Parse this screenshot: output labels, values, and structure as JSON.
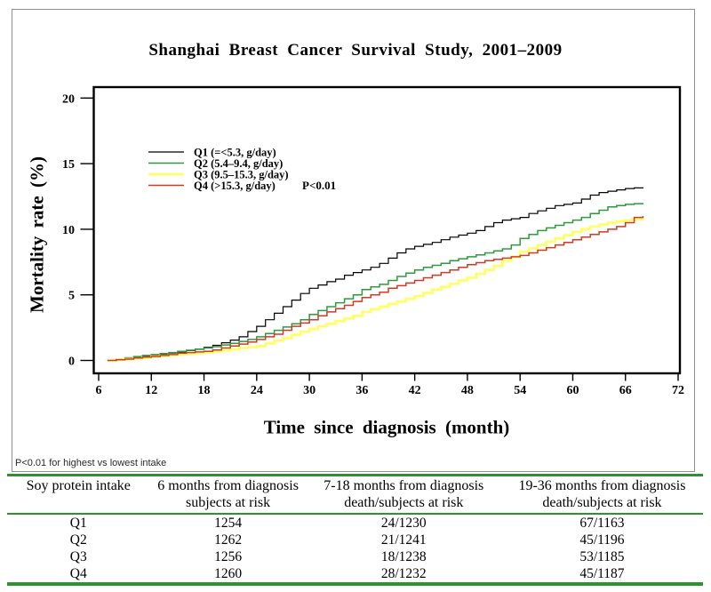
{
  "footnote": {
    "text": "P<0.01 for highest vs lowest intake"
  },
  "chart_data": {
    "type": "line",
    "step": true,
    "title": "Shanghai Breast Cancer Survival Study, 2001–2009",
    "xlabel": "Time since diagnosis (month)",
    "ylabel": "Mortality rate (%)",
    "xlim": [
      6,
      72
    ],
    "ylim": [
      0,
      20
    ],
    "grid": false,
    "x_ticks": [
      6,
      12,
      18,
      24,
      30,
      36,
      42,
      48,
      54,
      60,
      66,
      72
    ],
    "y_ticks": [
      0,
      5,
      10,
      15,
      20
    ],
    "legend_position": "upper-left-inside",
    "p_label": "P<0.01",
    "legend": [
      {
        "label": "Q1 (=<5.3, g/day)",
        "color": "#000000",
        "width": 1.2
      },
      {
        "label": "Q2 (5.4–9.4, g/day)",
        "color": "#2f9b3e",
        "width": 1.5
      },
      {
        "label": "Q3 (9.5–15.3, g/day)",
        "color": "#ffff6e",
        "width": 2.8
      },
      {
        "label": "Q4 (>15.3, g/day)",
        "color": "#cf3b24",
        "width": 1.5
      }
    ],
    "series": [
      {
        "name": "Q1",
        "color": "#000000",
        "width": 1.2,
        "points": [
          [
            7,
            0
          ],
          [
            8,
            0.08
          ],
          [
            9,
            0.16
          ],
          [
            10,
            0.25
          ],
          [
            11,
            0.32
          ],
          [
            12,
            0.4
          ],
          [
            13,
            0.48
          ],
          [
            14,
            0.56
          ],
          [
            15,
            0.65
          ],
          [
            16,
            0.75
          ],
          [
            17,
            0.85
          ],
          [
            18,
            1
          ],
          [
            19,
            1.15
          ],
          [
            20,
            1.35
          ],
          [
            21,
            1.55
          ],
          [
            22,
            1.8
          ],
          [
            23,
            2.2
          ],
          [
            24,
            2.6
          ],
          [
            25,
            3.1
          ],
          [
            26,
            3.6
          ],
          [
            27,
            4.1
          ],
          [
            28,
            4.6
          ],
          [
            29,
            5.1
          ],
          [
            30,
            5.5
          ],
          [
            31,
            5.75
          ],
          [
            32,
            6
          ],
          [
            33,
            6.2
          ],
          [
            34,
            6.5
          ],
          [
            35,
            6.7
          ],
          [
            36,
            6.9
          ],
          [
            37,
            7.1
          ],
          [
            38,
            7.4
          ],
          [
            39,
            7.8
          ],
          [
            40,
            8.2
          ],
          [
            41,
            8.5
          ],
          [
            42,
            8.7
          ],
          [
            43,
            8.85
          ],
          [
            44,
            9
          ],
          [
            45,
            9.2
          ],
          [
            46,
            9.4
          ],
          [
            47,
            9.55
          ],
          [
            48,
            9.7
          ],
          [
            49,
            9.9
          ],
          [
            50,
            10.2
          ],
          [
            51,
            10.5
          ],
          [
            52,
            10.7
          ],
          [
            53,
            10.8
          ],
          [
            54,
            10.9
          ],
          [
            55,
            11.2
          ],
          [
            56,
            11.4
          ],
          [
            57,
            11.6
          ],
          [
            58,
            11.8
          ],
          [
            59,
            11.9
          ],
          [
            60,
            12
          ],
          [
            61,
            12.3
          ],
          [
            62,
            12.6
          ],
          [
            63,
            12.8
          ],
          [
            64,
            12.9
          ],
          [
            65,
            13
          ],
          [
            66,
            13.1
          ],
          [
            67,
            13.15
          ],
          [
            68,
            13.2
          ]
        ]
      },
      {
        "name": "Q2",
        "color": "#2f9b3e",
        "width": 1.5,
        "points": [
          [
            7,
            0
          ],
          [
            8,
            0.1
          ],
          [
            9,
            0.2
          ],
          [
            10,
            0.3
          ],
          [
            11,
            0.38
          ],
          [
            12,
            0.45
          ],
          [
            13,
            0.52
          ],
          [
            14,
            0.6
          ],
          [
            15,
            0.7
          ],
          [
            16,
            0.78
          ],
          [
            17,
            0.87
          ],
          [
            18,
            0.95
          ],
          [
            19,
            1.05
          ],
          [
            20,
            1.18
          ],
          [
            21,
            1.3
          ],
          [
            22,
            1.45
          ],
          [
            23,
            1.6
          ],
          [
            24,
            1.8
          ],
          [
            25,
            2.05
          ],
          [
            26,
            2.3
          ],
          [
            27,
            2.55
          ],
          [
            28,
            2.8
          ],
          [
            29,
            3.1
          ],
          [
            30,
            3.5
          ],
          [
            31,
            3.8
          ],
          [
            32,
            4.1
          ],
          [
            33,
            4.4
          ],
          [
            34,
            4.7
          ],
          [
            35,
            5
          ],
          [
            36,
            5.4
          ],
          [
            37,
            5.6
          ],
          [
            38,
            5.8
          ],
          [
            39,
            6.1
          ],
          [
            40,
            6.4
          ],
          [
            41,
            6.65
          ],
          [
            42,
            6.9
          ],
          [
            43,
            7.1
          ],
          [
            44,
            7.25
          ],
          [
            45,
            7.4
          ],
          [
            46,
            7.6
          ],
          [
            47,
            7.75
          ],
          [
            48,
            7.9
          ],
          [
            49,
            8.05
          ],
          [
            50,
            8.2
          ],
          [
            51,
            8.35
          ],
          [
            52,
            8.5
          ],
          [
            53,
            8.8
          ],
          [
            54,
            9.3
          ],
          [
            55,
            9.6
          ],
          [
            56,
            9.9
          ],
          [
            57,
            10.1
          ],
          [
            58,
            10.3
          ],
          [
            59,
            10.5
          ],
          [
            60,
            10.7
          ],
          [
            61,
            10.9
          ],
          [
            62,
            11.2
          ],
          [
            63,
            11.45
          ],
          [
            64,
            11.7
          ],
          [
            65,
            11.8
          ],
          [
            66,
            11.9
          ],
          [
            67,
            11.95
          ],
          [
            68,
            12
          ]
        ]
      },
      {
        "name": "Q3",
        "color": "#ffff6e",
        "width": 2.8,
        "points": [
          [
            7,
            0
          ],
          [
            8,
            0.05
          ],
          [
            9,
            0.1
          ],
          [
            10,
            0.15
          ],
          [
            11,
            0.22
          ],
          [
            12,
            0.3
          ],
          [
            13,
            0.35
          ],
          [
            14,
            0.4
          ],
          [
            15,
            0.45
          ],
          [
            16,
            0.5
          ],
          [
            17,
            0.55
          ],
          [
            18,
            0.6
          ],
          [
            19,
            0.68
          ],
          [
            20,
            0.77
          ],
          [
            21,
            0.85
          ],
          [
            22,
            0.95
          ],
          [
            23,
            1
          ],
          [
            24,
            1.1
          ],
          [
            25,
            1.3
          ],
          [
            26,
            1.5
          ],
          [
            27,
            1.7
          ],
          [
            28,
            1.95
          ],
          [
            29,
            2.2
          ],
          [
            30,
            2.4
          ],
          [
            31,
            2.6
          ],
          [
            32,
            2.8
          ],
          [
            33,
            3
          ],
          [
            34,
            3.2
          ],
          [
            35,
            3.4
          ],
          [
            36,
            3.7
          ],
          [
            37,
            3.9
          ],
          [
            38,
            4.1
          ],
          [
            39,
            4.3
          ],
          [
            40,
            4.5
          ],
          [
            41,
            4.7
          ],
          [
            42,
            4.9
          ],
          [
            43,
            5.15
          ],
          [
            44,
            5.4
          ],
          [
            45,
            5.6
          ],
          [
            46,
            5.85
          ],
          [
            47,
            6.1
          ],
          [
            48,
            6.3
          ],
          [
            49,
            6.6
          ],
          [
            50,
            6.9
          ],
          [
            51,
            7.2
          ],
          [
            52,
            7.6
          ],
          [
            53,
            7.9
          ],
          [
            54,
            8.3
          ],
          [
            55,
            8.55
          ],
          [
            56,
            8.8
          ],
          [
            57,
            9.05
          ],
          [
            58,
            9.3
          ],
          [
            59,
            9.55
          ],
          [
            60,
            9.8
          ],
          [
            61,
            10
          ],
          [
            62,
            10.2
          ],
          [
            63,
            10.35
          ],
          [
            64,
            10.5
          ],
          [
            65,
            10.6
          ],
          [
            66,
            10.7
          ],
          [
            67,
            10.75
          ],
          [
            68,
            10.8
          ]
        ]
      },
      {
        "name": "Q4",
        "color": "#cf3b24",
        "width": 1.5,
        "points": [
          [
            7,
            0
          ],
          [
            8,
            0.05
          ],
          [
            9,
            0.1
          ],
          [
            10,
            0.18
          ],
          [
            11,
            0.25
          ],
          [
            12,
            0.3
          ],
          [
            13,
            0.38
          ],
          [
            14,
            0.45
          ],
          [
            15,
            0.55
          ],
          [
            16,
            0.6
          ],
          [
            17,
            0.65
          ],
          [
            18,
            0.7
          ],
          [
            19,
            0.8
          ],
          [
            20,
            0.95
          ],
          [
            21,
            1.1
          ],
          [
            22,
            1.25
          ],
          [
            23,
            1.4
          ],
          [
            24,
            1.6
          ],
          [
            25,
            1.8
          ],
          [
            26,
            2
          ],
          [
            27,
            2.3
          ],
          [
            28,
            2.6
          ],
          [
            29,
            2.85
          ],
          [
            30,
            3.1
          ],
          [
            31,
            3.4
          ],
          [
            32,
            3.7
          ],
          [
            33,
            3.95
          ],
          [
            34,
            4.2
          ],
          [
            35,
            4.5
          ],
          [
            36,
            4.8
          ],
          [
            37,
            5
          ],
          [
            38,
            5.2
          ],
          [
            39,
            5.5
          ],
          [
            40,
            5.7
          ],
          [
            41,
            5.9
          ],
          [
            42,
            6.1
          ],
          [
            43,
            6.3
          ],
          [
            44,
            6.5
          ],
          [
            45,
            6.7
          ],
          [
            46,
            6.9
          ],
          [
            47,
            7.1
          ],
          [
            48,
            7.3
          ],
          [
            49,
            7.45
          ],
          [
            50,
            7.6
          ],
          [
            51,
            7.7
          ],
          [
            52,
            7.8
          ],
          [
            53,
            7.9
          ],
          [
            54,
            8
          ],
          [
            55,
            8.2
          ],
          [
            56,
            8.4
          ],
          [
            57,
            8.6
          ],
          [
            58,
            8.8
          ],
          [
            59,
            9
          ],
          [
            60,
            9.2
          ],
          [
            61,
            9.4
          ],
          [
            62,
            9.6
          ],
          [
            63,
            9.8
          ],
          [
            64,
            10
          ],
          [
            65,
            10.2
          ],
          [
            66,
            10.5
          ],
          [
            67,
            10.9
          ],
          [
            68,
            11
          ]
        ]
      }
    ]
  },
  "table": {
    "rule_color": "#2e9230",
    "col_headers": [
      {
        "line1": "Soy protein intake",
        "line2": ""
      },
      {
        "line1": "6 months from diagnosis",
        "line2": "subjects at risk"
      },
      {
        "line1": "7-18 months from diagnosis",
        "line2": "death/subjects at risk"
      },
      {
        "line1": "19-36 months from diagnosis",
        "line2": "death/subjects at risk"
      }
    ],
    "rows": [
      {
        "label": "Q1",
        "c1": "1254",
        "c2": "24/1230",
        "c3": "67/1163"
      },
      {
        "label": "Q2",
        "c1": "1262",
        "c2": "21/1241",
        "c3": "45/1196"
      },
      {
        "label": "Q3",
        "c1": "1256",
        "c2": "18/1238",
        "c3": "53/1185"
      },
      {
        "label": "Q4",
        "c1": "1260",
        "c2": "28/1232",
        "c3": "45/1187"
      }
    ]
  }
}
